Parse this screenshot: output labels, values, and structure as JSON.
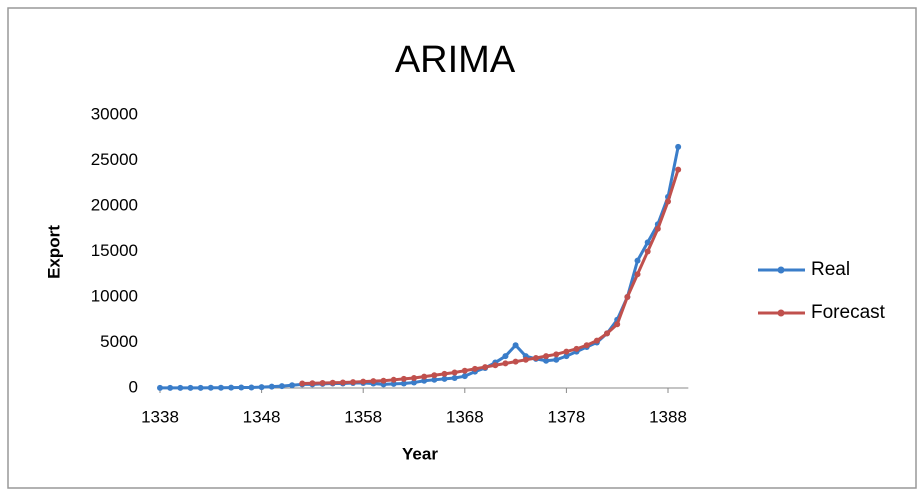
{
  "chart_data": {
    "type": "line",
    "title": "ARIMA",
    "x_label": "Year",
    "y_label": "Export",
    "x": [
      1338,
      1339,
      1340,
      1341,
      1342,
      1343,
      1344,
      1345,
      1346,
      1347,
      1348,
      1349,
      1350,
      1351,
      1352,
      1353,
      1354,
      1355,
      1356,
      1357,
      1358,
      1359,
      1360,
      1361,
      1362,
      1363,
      1364,
      1365,
      1366,
      1367,
      1368,
      1369,
      1370,
      1371,
      1372,
      1373,
      1374,
      1375,
      1376,
      1377,
      1378,
      1379,
      1380,
      1381,
      1382,
      1383,
      1384,
      1385,
      1386,
      1387,
      1388,
      1389
    ],
    "series": [
      {
        "name": "Real",
        "color": "#3a7dc9",
        "values": [
          10,
          12,
          15,
          18,
          20,
          25,
          30,
          40,
          50,
          60,
          100,
          150,
          200,
          300,
          400,
          400,
          450,
          500,
          500,
          550,
          550,
          500,
          400,
          450,
          500,
          600,
          800,
          900,
          1000,
          1100,
          1300,
          1800,
          2200,
          2800,
          3500,
          4700,
          3500,
          3200,
          3000,
          3100,
          3500,
          4000,
          4500,
          5000,
          6000,
          7500,
          10000,
          14000,
          16000,
          18000,
          21000,
          26500
        ]
      },
      {
        "name": "Forecast",
        "color": "#c0504d",
        "values": [
          null,
          null,
          null,
          null,
          null,
          null,
          null,
          null,
          null,
          null,
          null,
          null,
          null,
          null,
          500,
          520,
          550,
          580,
          600,
          650,
          700,
          750,
          800,
          900,
          1000,
          1100,
          1250,
          1400,
          1550,
          1700,
          1900,
          2100,
          2300,
          2500,
          2700,
          2900,
          3100,
          3300,
          3500,
          3700,
          4000,
          4300,
          4700,
          5200,
          6000,
          7000,
          10000,
          12500,
          15000,
          17500,
          20500,
          24000
        ]
      }
    ],
    "xlim": [
      1338,
      1390
    ],
    "xticks": [
      1338,
      1348,
      1358,
      1368,
      1378,
      1388
    ],
    "ylim": [
      0,
      30000
    ],
    "yticks": [
      0,
      5000,
      10000,
      15000,
      20000,
      25000,
      30000
    ],
    "grid": false,
    "legend": "right"
  }
}
